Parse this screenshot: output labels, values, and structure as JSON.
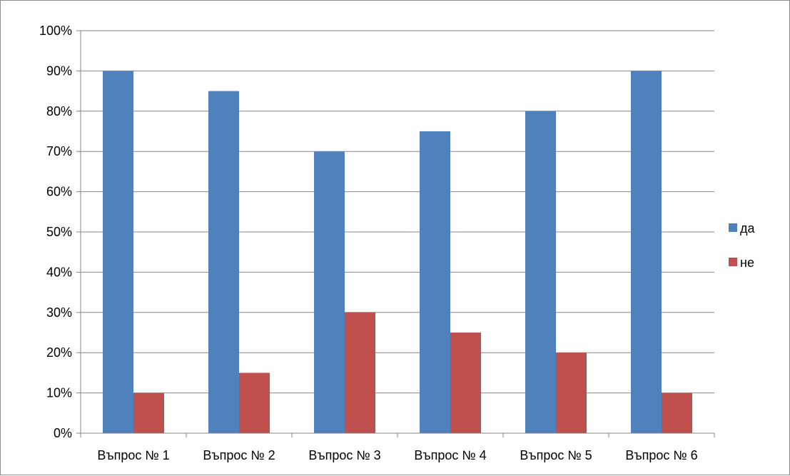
{
  "chart_data": {
    "type": "bar",
    "categories": [
      "Въпрос № 1",
      "Въпрос № 2",
      "Въпрос № 3",
      "Въпрос № 4",
      "Въпрос № 5",
      "Въпрос № 6"
    ],
    "series": [
      {
        "name": "да",
        "color": "#4F81BD",
        "values": [
          90,
          85,
          70,
          75,
          80,
          90
        ]
      },
      {
        "name": "не",
        "color": "#C0504D",
        "values": [
          10,
          15,
          30,
          25,
          20,
          10
        ]
      }
    ],
    "ylim": [
      0,
      100
    ],
    "yticks": [
      0,
      10,
      20,
      30,
      40,
      50,
      60,
      70,
      80,
      90,
      100
    ],
    "ytick_labels": [
      "0%",
      "10%",
      "20%",
      "30%",
      "40%",
      "50%",
      "60%",
      "70%",
      "80%",
      "90%",
      "100%"
    ],
    "grid": true,
    "legend_position": "right"
  }
}
